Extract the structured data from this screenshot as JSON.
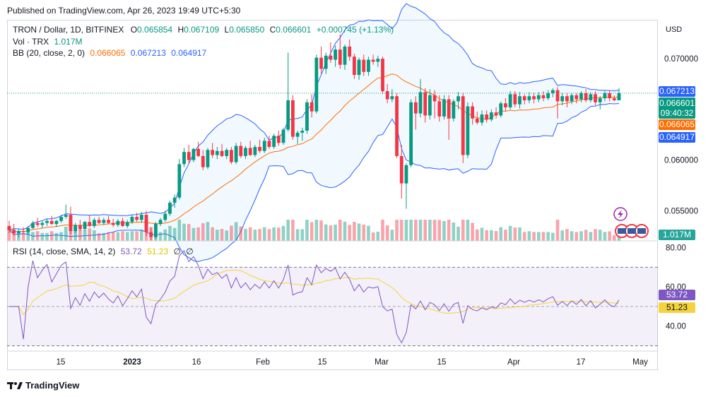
{
  "header": {
    "published": "Published on TradingView.com, Apr 26, 2023 19:49 UTC+5:30"
  },
  "legend": {
    "symbol": "TRON / Dollar, 1D, BITFINEX",
    "o_label": "O",
    "o": "0.065854",
    "h_label": "H",
    "h": "0.067109",
    "l_label": "L",
    "l": "0.065850",
    "c_label": "C",
    "c": "0.066601",
    "change": "+0.000745 (+1.13%)",
    "vol_label": "Vol · TRX",
    "vol": "1.017M",
    "bb_label": "BB (20, close, 2, 0)",
    "bb_mid": "0.066065",
    "bb_upper": "0.067213",
    "bb_lower": "0.064917",
    "rsi_label": "RSI (14, close, SMA, 14, 2)",
    "rsi": "53.72",
    "rsi_sma": "51.23",
    "rsi_extra1": "∅",
    "rsi_extra2": "∅"
  },
  "axis": {
    "currency": "USD",
    "price_ticks": [
      "0.070000",
      "0.060000",
      "0.055000"
    ],
    "rsi_ticks": [
      "80.00",
      "60.00",
      "40.00"
    ],
    "x_ticks": [
      "15",
      "2023",
      "16",
      "Feb",
      "15",
      "Mar",
      "15",
      "Apr",
      "17",
      "May"
    ]
  },
  "price_tags": {
    "bb_upper": "0.067213",
    "last": "0.066601",
    "countdown": "09:40:32",
    "bb_mid": "0.066065",
    "bb_lower": "0.064917",
    "volume": "1.017M",
    "rsi": "53.72",
    "rsi_sma": "51.23"
  },
  "footer": {
    "brand": "TradingView"
  },
  "colors": {
    "up": "#089981",
    "down": "#f23645",
    "bb_basis": "#ff6d00",
    "bb_band": "#2962ff",
    "rsi": "#7e57c2",
    "rsi_sma": "#f5d33d"
  },
  "chart_data": {
    "type": "candlestick",
    "price_ylim": [
      0.0521,
      0.0737
    ],
    "rsi_ylim": [
      28,
      82
    ],
    "candles": [
      [
        0.0535,
        0.054,
        0.0528,
        0.0531
      ],
      [
        0.0531,
        0.0537,
        0.0526,
        0.0528
      ],
      [
        0.0528,
        0.0532,
        0.0524,
        0.053
      ],
      [
        0.053,
        0.0534,
        0.0527,
        0.0529
      ],
      [
        0.0529,
        0.0535,
        0.0527,
        0.0533
      ],
      [
        0.0533,
        0.054,
        0.0532,
        0.0538
      ],
      [
        0.0538,
        0.0543,
        0.0534,
        0.0536
      ],
      [
        0.0536,
        0.054,
        0.0533,
        0.0538
      ],
      [
        0.0538,
        0.0542,
        0.0535,
        0.054
      ],
      [
        0.054,
        0.0545,
        0.0536,
        0.0537
      ],
      [
        0.0537,
        0.0541,
        0.0534,
        0.054
      ],
      [
        0.054,
        0.0546,
        0.0538,
        0.0544
      ],
      [
        0.0544,
        0.0556,
        0.0542,
        0.0546
      ],
      [
        0.0546,
        0.0554,
        0.0527,
        0.053
      ],
      [
        0.053,
        0.0538,
        0.0528,
        0.0536
      ],
      [
        0.0536,
        0.0541,
        0.053,
        0.0532
      ],
      [
        0.0532,
        0.054,
        0.053,
        0.0539
      ],
      [
        0.0539,
        0.0546,
        0.0534,
        0.0535
      ],
      [
        0.0535,
        0.0543,
        0.0533,
        0.0541
      ],
      [
        0.0541,
        0.0544,
        0.0537,
        0.0538
      ],
      [
        0.0538,
        0.0543,
        0.0536,
        0.0541
      ],
      [
        0.0541,
        0.0545,
        0.0537,
        0.0538
      ],
      [
        0.0538,
        0.0542,
        0.0534,
        0.0536
      ],
      [
        0.0536,
        0.0542,
        0.0534,
        0.054
      ],
      [
        0.054,
        0.0543,
        0.0534,
        0.0535
      ],
      [
        0.0535,
        0.0541,
        0.0533,
        0.0539
      ],
      [
        0.0539,
        0.0546,
        0.0537,
        0.0544
      ],
      [
        0.0544,
        0.0548,
        0.0539,
        0.0541
      ],
      [
        0.0541,
        0.0549,
        0.0538,
        0.0546
      ],
      [
        0.0546,
        0.055,
        0.0525,
        0.0529
      ],
      [
        0.0529,
        0.0534,
        0.0521,
        0.0524
      ],
      [
        0.0524,
        0.0539,
        0.0522,
        0.0537
      ],
      [
        0.0537,
        0.0543,
        0.0535,
        0.0541
      ],
      [
        0.0541,
        0.055,
        0.0539,
        0.0547
      ],
      [
        0.0547,
        0.056,
        0.0545,
        0.0558
      ],
      [
        0.0558,
        0.0566,
        0.0553,
        0.0563
      ],
      [
        0.0563,
        0.0601,
        0.0561,
        0.0596
      ],
      [
        0.0596,
        0.0612,
        0.0593,
        0.0608
      ],
      [
        0.0608,
        0.0615,
        0.0596,
        0.06
      ],
      [
        0.06,
        0.0612,
        0.0598,
        0.0611
      ],
      [
        0.0611,
        0.0618,
        0.0603,
        0.0604
      ],
      [
        0.0604,
        0.061,
        0.059,
        0.0593
      ],
      [
        0.0593,
        0.0612,
        0.0591,
        0.061
      ],
      [
        0.061,
        0.0617,
        0.0602,
        0.0605
      ],
      [
        0.0605,
        0.0613,
        0.0601,
        0.0609
      ],
      [
        0.0609,
        0.0616,
        0.0603,
        0.0604
      ],
      [
        0.0604,
        0.0612,
        0.0601,
        0.061
      ],
      [
        0.061,
        0.0613,
        0.0596,
        0.0598
      ],
      [
        0.0598,
        0.0617,
        0.0596,
        0.0614
      ],
      [
        0.0614,
        0.0618,
        0.0602,
        0.0604
      ],
      [
        0.0604,
        0.0614,
        0.0601,
        0.0612
      ],
      [
        0.0612,
        0.0619,
        0.0604,
        0.0605
      ],
      [
        0.0605,
        0.0615,
        0.0603,
        0.0613
      ],
      [
        0.0613,
        0.062,
        0.0607,
        0.0609
      ],
      [
        0.0609,
        0.0622,
        0.0607,
        0.0619
      ],
      [
        0.0619,
        0.0624,
        0.0611,
        0.0613
      ],
      [
        0.0613,
        0.0626,
        0.0611,
        0.0624
      ],
      [
        0.0624,
        0.0629,
        0.0614,
        0.0617
      ],
      [
        0.0617,
        0.0632,
        0.0615,
        0.063
      ],
      [
        0.063,
        0.0706,
        0.0628,
        0.0659
      ],
      [
        0.0659,
        0.0664,
        0.062,
        0.0623
      ],
      [
        0.0623,
        0.0629,
        0.0616,
        0.0627
      ],
      [
        0.0627,
        0.0632,
        0.0619,
        0.0629
      ],
      [
        0.0629,
        0.066,
        0.0626,
        0.0657
      ],
      [
        0.0657,
        0.0665,
        0.0642,
        0.0648
      ],
      [
        0.0648,
        0.0704,
        0.0646,
        0.0701
      ],
      [
        0.0701,
        0.0712,
        0.0685,
        0.069
      ],
      [
        0.069,
        0.0706,
        0.0685,
        0.0703
      ],
      [
        0.0703,
        0.0716,
        0.0696,
        0.0699
      ],
      [
        0.0699,
        0.0713,
        0.0692,
        0.0709
      ],
      [
        0.0709,
        0.0724,
        0.069,
        0.0694
      ],
      [
        0.0694,
        0.0714,
        0.0689,
        0.0712
      ],
      [
        0.0712,
        0.0719,
        0.0698,
        0.0702
      ],
      [
        0.0702,
        0.0705,
        0.068,
        0.0684
      ],
      [
        0.0684,
        0.0701,
        0.0679,
        0.0699
      ],
      [
        0.0699,
        0.0704,
        0.0683,
        0.0687
      ],
      [
        0.0687,
        0.0702,
        0.0683,
        0.0699
      ],
      [
        0.0699,
        0.0704,
        0.0694,
        0.0697
      ],
      [
        0.0697,
        0.0703,
        0.0692,
        0.07
      ],
      [
        0.07,
        0.0702,
        0.0665,
        0.0668
      ],
      [
        0.0668,
        0.0675,
        0.0656,
        0.066
      ],
      [
        0.066,
        0.067,
        0.0657,
        0.0663
      ],
      [
        0.0663,
        0.0666,
        0.0602,
        0.0604
      ],
      [
        0.0604,
        0.0615,
        0.0562,
        0.0577
      ],
      [
        0.0577,
        0.0597,
        0.0552,
        0.0595
      ],
      [
        0.0595,
        0.066,
        0.0593,
        0.0657
      ],
      [
        0.0657,
        0.0663,
        0.063,
        0.0646
      ],
      [
        0.0646,
        0.068,
        0.0642,
        0.0667
      ],
      [
        0.0667,
        0.0671,
        0.0637,
        0.0644
      ],
      [
        0.0644,
        0.067,
        0.064,
        0.0664
      ],
      [
        0.0664,
        0.0669,
        0.0641,
        0.0658
      ],
      [
        0.0658,
        0.0664,
        0.0638,
        0.0643
      ],
      [
        0.0643,
        0.0664,
        0.064,
        0.066
      ],
      [
        0.066,
        0.0664,
        0.062,
        0.0641
      ],
      [
        0.0641,
        0.066,
        0.0638,
        0.0658
      ],
      [
        0.0658,
        0.0667,
        0.065,
        0.0663
      ],
      [
        0.0663,
        0.0666,
        0.0597,
        0.0605
      ],
      [
        0.0605,
        0.0657,
        0.0602,
        0.0653
      ],
      [
        0.0653,
        0.0657,
        0.0635,
        0.0641
      ],
      [
        0.0641,
        0.0648,
        0.0635,
        0.0637
      ],
      [
        0.0637,
        0.0649,
        0.0634,
        0.0645
      ],
      [
        0.0645,
        0.0649,
        0.0637,
        0.064
      ],
      [
        0.064,
        0.065,
        0.0638,
        0.0647
      ],
      [
        0.0647,
        0.0652,
        0.0641,
        0.0644
      ],
      [
        0.0644,
        0.0658,
        0.0642,
        0.0656
      ],
      [
        0.0656,
        0.0661,
        0.0648,
        0.0652
      ],
      [
        0.0652,
        0.0668,
        0.065,
        0.0665
      ],
      [
        0.0665,
        0.0668,
        0.0652,
        0.0655
      ],
      [
        0.0655,
        0.0667,
        0.0651,
        0.0663
      ],
      [
        0.0663,
        0.0665,
        0.0655,
        0.0659
      ],
      [
        0.0659,
        0.0667,
        0.0656,
        0.0663
      ],
      [
        0.0663,
        0.0666,
        0.0656,
        0.066
      ],
      [
        0.066,
        0.0667,
        0.0657,
        0.0664
      ],
      [
        0.0664,
        0.0668,
        0.0658,
        0.0661
      ],
      [
        0.0661,
        0.0669,
        0.0659,
        0.0666
      ],
      [
        0.0666,
        0.0671,
        0.0662,
        0.0669
      ],
      [
        0.0669,
        0.0672,
        0.0641,
        0.0658
      ],
      [
        0.0658,
        0.0666,
        0.0654,
        0.0663
      ],
      [
        0.0663,
        0.0666,
        0.0652,
        0.0658
      ],
      [
        0.0658,
        0.0666,
        0.0655,
        0.0664
      ],
      [
        0.0664,
        0.0666,
        0.0656,
        0.066
      ],
      [
        0.066,
        0.0668,
        0.0657,
        0.0666
      ],
      [
        0.0666,
        0.067,
        0.0657,
        0.0659
      ],
      [
        0.0659,
        0.0667,
        0.0657,
        0.0665
      ],
      [
        0.0665,
        0.0668,
        0.0654,
        0.0657
      ],
      [
        0.0657,
        0.0663,
        0.065,
        0.0661
      ],
      [
        0.0661,
        0.0668,
        0.0658,
        0.0666
      ],
      [
        0.0666,
        0.0669,
        0.0658,
        0.0661
      ],
      [
        0.0661,
        0.0664,
        0.0658,
        0.0659
      ],
      [
        0.0659,
        0.0671,
        0.0659,
        0.0666
      ]
    ]
  }
}
